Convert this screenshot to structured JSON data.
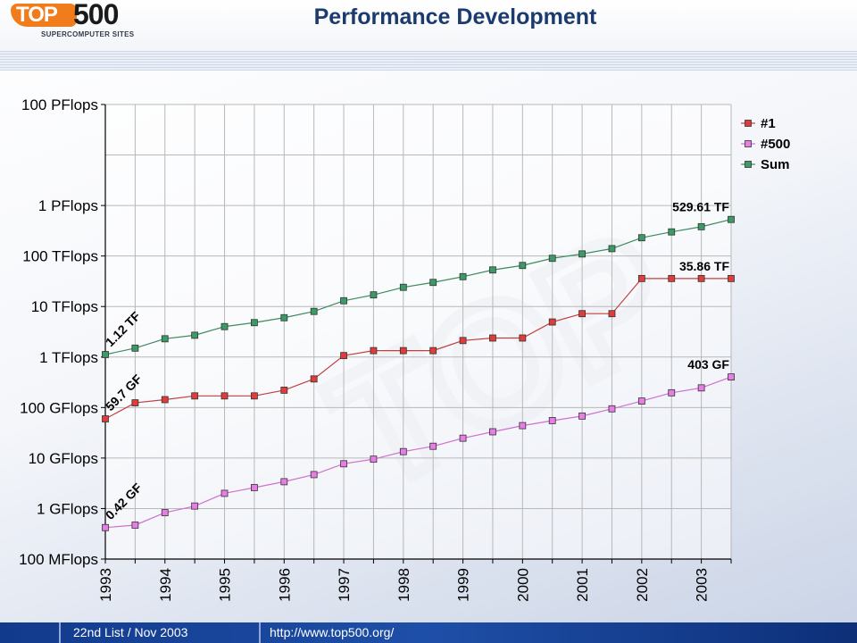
{
  "header": {
    "logo_top": "TOP",
    "logo_500": "500",
    "logo_sub": "SUPERCOMPUTER SITES",
    "title": "Performance Development"
  },
  "footer": {
    "list_label": "22nd List / Nov 2003",
    "url": "http://www.top500.org/"
  },
  "chart_data": {
    "type": "line",
    "title": "Performance Development",
    "xlabel": "",
    "ylabel": "",
    "y_scale": "log",
    "y_unit": "GFlops",
    "ylim": [
      0.1,
      100000000
    ],
    "xlim": [
      1993,
      2003.5
    ],
    "grid": true,
    "legend_position": "top-right",
    "y_ticks": [
      {
        "value": 0.1,
        "label": "100 MFlops"
      },
      {
        "value": 1,
        "label": "1 GFlops"
      },
      {
        "value": 10,
        "label": "10 GFlops"
      },
      {
        "value": 100,
        "label": "100 GFlops"
      },
      {
        "value": 1000,
        "label": "1 TFlops"
      },
      {
        "value": 10000,
        "label": "10 TFlops"
      },
      {
        "value": 100000,
        "label": "100 TFlops"
      },
      {
        "value": 1000000,
        "label": "1 PFlops"
      },
      {
        "value": 100000000,
        "label": "100 PFlops"
      }
    ],
    "x_ticks": [
      "1993",
      "1994",
      "1995",
      "1996",
      "1997",
      "1998",
      "1999",
      "2000",
      "2001",
      "2002",
      "2003"
    ],
    "x": [
      1993.0,
      1993.5,
      1994.0,
      1994.5,
      1995.0,
      1995.5,
      1996.0,
      1996.5,
      1997.0,
      1997.5,
      1998.0,
      1998.5,
      1999.0,
      1999.5,
      2000.0,
      2000.5,
      2001.0,
      2001.5,
      2002.0,
      2002.5,
      2003.0,
      2003.5
    ],
    "series": [
      {
        "name": "#1",
        "color": "#e03c3c",
        "line_color": "#c24040",
        "values": [
          59.7,
          124,
          143.4,
          170,
          170,
          170,
          220.4,
          368.2,
          1068,
          1338,
          1338,
          1338,
          2121,
          2379,
          2379,
          4938,
          7226,
          7226,
          35860,
          35860,
          35860,
          35860
        ]
      },
      {
        "name": "#500",
        "color": "#e67ee6",
        "line_color": "#d070d0",
        "values": [
          0.42,
          0.47,
          0.83,
          1.12,
          2.0,
          2.6,
          3.4,
          4.7,
          7.7,
          9.5,
          13.4,
          17.1,
          24.7,
          33.1,
          43.8,
          55.1,
          67.8,
          94.3,
          134.3,
          195.8,
          245.1,
          403
        ]
      },
      {
        "name": "Sum",
        "color": "#3c9a66",
        "line_color": "#3c8a60",
        "values": [
          1120,
          1500,
          2300,
          2700,
          4000,
          4800,
          6000,
          8000,
          13000,
          17000,
          24000,
          30000,
          39000,
          53000,
          65000,
          90000,
          110000,
          140000,
          230000,
          300000,
          380000,
          529610
        ]
      }
    ],
    "annotations": [
      {
        "text": "1.12 TF",
        "series": 2,
        "point": 0,
        "rotated": true
      },
      {
        "text": "59.7 GF",
        "series": 0,
        "point": 0,
        "rotated": true
      },
      {
        "text": "0.42 GF",
        "series": 1,
        "point": 0,
        "rotated": true
      },
      {
        "text": "529.61 TF",
        "series": 2,
        "point": 21,
        "rotated": false
      },
      {
        "text": "35.86 TF",
        "series": 0,
        "point": 21,
        "rotated": false
      },
      {
        "text": "403 GF",
        "series": 1,
        "point": 21,
        "rotated": false
      }
    ]
  }
}
